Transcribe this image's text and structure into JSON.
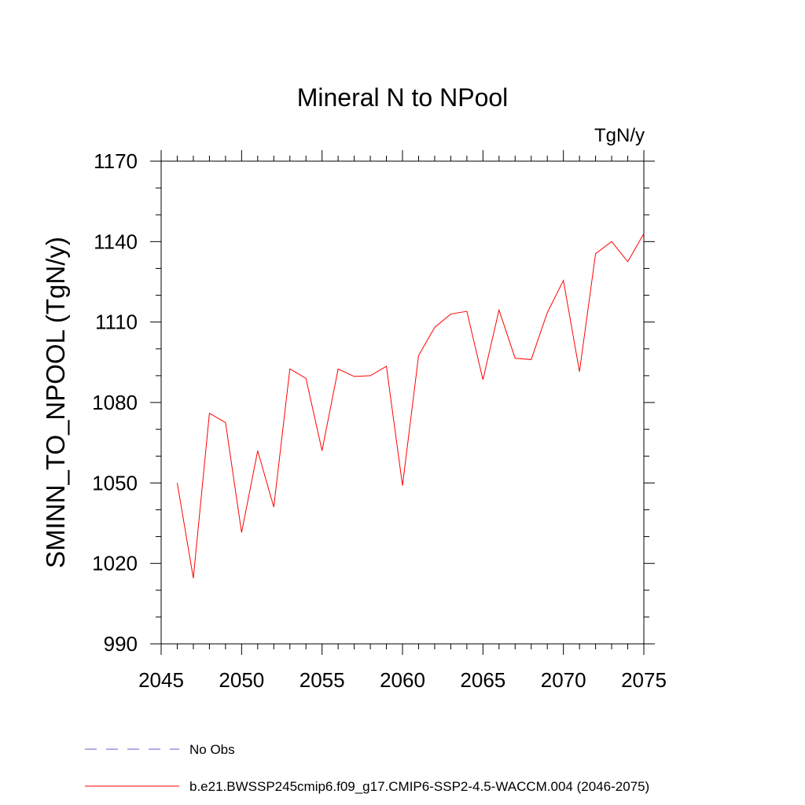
{
  "chart_data": {
    "type": "line",
    "title": "Mineral N to NPool",
    "units": "TgN/y",
    "xlabel": "",
    "ylabel": "SMINN_TO_NPOOL  (TgN/y)",
    "xlim": [
      2045,
      2075
    ],
    "ylim": [
      990,
      1170
    ],
    "xticks": [
      2045,
      2050,
      2055,
      2060,
      2065,
      2070,
      2075
    ],
    "yticks": [
      990,
      1020,
      1050,
      1080,
      1110,
      1140,
      1170
    ],
    "x_minor_step": 1,
    "y_minor_step": 10,
    "series": [
      {
        "name": "b.e21.BWSSP245cmip6.f09_g17.CMIP6-SSP2-4.5-WACCM.004 (2046-2075)",
        "color": "#ff0000",
        "x": [
          2046,
          2047,
          2048,
          2049,
          2050,
          2051,
          2052,
          2053,
          2054,
          2055,
          2056,
          2057,
          2058,
          2059,
          2060,
          2061,
          2062,
          2063,
          2064,
          2065,
          2066,
          2067,
          2068,
          2069,
          2070,
          2071,
          2072,
          2073,
          2074,
          2075
        ],
        "values": [
          1050,
          1014.5,
          1076,
          1072.5,
          1031.5,
          1062,
          1041,
          1092.5,
          1089,
          1062,
          1092.5,
          1089.7,
          1090,
          1093.5,
          1049,
          1097.5,
          1108,
          1113,
          1114,
          1088.5,
          1114.5,
          1096.5,
          1096,
          1113.5,
          1125.5,
          1091.5,
          1135.5,
          1140,
          1132.5,
          1143
        ]
      }
    ],
    "legend": [
      {
        "label": "No Obs",
        "color": "#6a5acd",
        "style": "dashed"
      },
      {
        "label": "b.e21.BWSSP245cmip6.f09_g17.CMIP6-SSP2-4.5-WACCM.004 (2046-2075)",
        "color": "#ff0000",
        "style": "solid"
      }
    ]
  }
}
